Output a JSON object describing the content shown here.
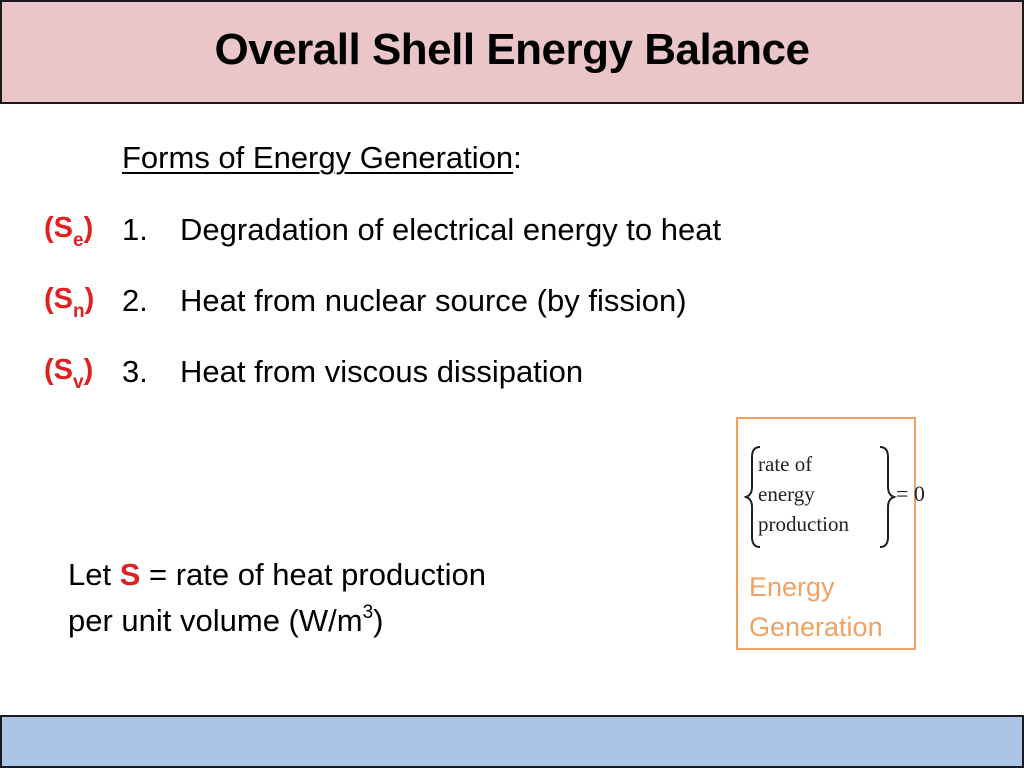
{
  "slide": {
    "title": "Overall Shell Energy Balance"
  },
  "forms": {
    "heading": "Forms of Energy Generation",
    "heading_suffix": ":",
    "items": [
      {
        "tag_open": "(S",
        "tag_sub": "e",
        "tag_close": ")",
        "number": "1.",
        "text": "Degradation of electrical energy to heat"
      },
      {
        "tag_open": "(S",
        "tag_sub": "n",
        "tag_close": ")",
        "number": "2.",
        "text": "Heat from nuclear source (by fission)"
      },
      {
        "tag_open": "(S",
        "tag_sub": "v",
        "tag_close": ")",
        "number": "3.",
        "text": "Heat from viscous dissipation"
      }
    ]
  },
  "definition": {
    "let": "Let ",
    "symbol": "S",
    "rest_line1": " = rate of heat production",
    "line2_prefix": "per unit volume (W/m",
    "line2_sup": "3",
    "line2_suffix": ")"
  },
  "energy_box": {
    "formula_lines": [
      "rate of",
      "energy",
      "production"
    ],
    "formula_rhs": "= 0",
    "caption_line1": "Energy",
    "caption_line2": "Generation"
  },
  "colors": {
    "header_bg": "#eac6c8",
    "footer_bg": "#aac5e8",
    "accent_red": "#e02020",
    "box_orange": "#f0a262",
    "caption_orange": "#f0a262"
  }
}
